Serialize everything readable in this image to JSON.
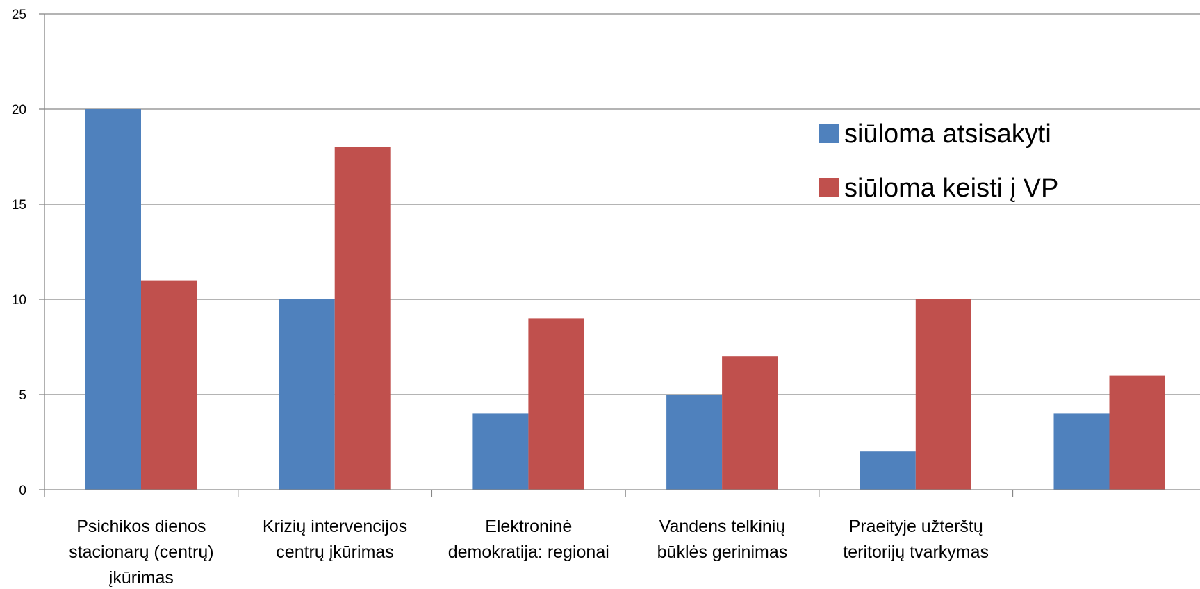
{
  "chart_data": {
    "type": "bar",
    "title": "",
    "xlabel": "",
    "ylabel": "",
    "ylim": [
      0,
      25
    ],
    "yticks": [
      0,
      5,
      10,
      15,
      20,
      25
    ],
    "grid": true,
    "legend_position": "top-right",
    "categories": [
      [
        "Psichikos dienos",
        "stacionarų (centrų)",
        "įkūrimas"
      ],
      [
        "Krizių intervencijos",
        "centrų įkūrimas"
      ],
      [
        "Elektroninė",
        "demokratija: regionai"
      ],
      [
        "Vandens telkinių",
        "būklės gerinimas"
      ],
      [
        "Praeityje užterštų",
        "teritorijų tvarkymas"
      ],
      [
        ""
      ]
    ],
    "series": [
      {
        "name": "siūloma atsisakyti",
        "color": "#4f81bd",
        "values": [
          20,
          10,
          4,
          5,
          2,
          4
        ]
      },
      {
        "name": "siūloma keisti į VP",
        "color": "#c0504d",
        "values": [
          11,
          18,
          9,
          7,
          10,
          6
        ]
      }
    ]
  }
}
